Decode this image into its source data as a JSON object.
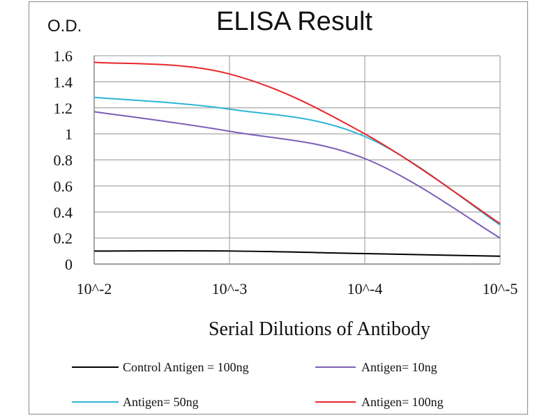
{
  "chart_data": {
    "type": "line",
    "title": "ELISA Result",
    "ylabel": "O.D.",
    "xlabel": "Serial Dilutions  of Antibody",
    "categories": [
      "10^-2",
      "10^-3",
      "10^-4",
      "10^-5"
    ],
    "ylim": [
      0,
      1.6
    ],
    "yticks": [
      "0",
      "0.2",
      "0.4",
      "0.6",
      "0.8",
      "1",
      "1.2",
      "1.4",
      "1.6"
    ],
    "grid": true,
    "legend_position": "bottom",
    "series": [
      {
        "name": "Control Antigen = 100ng",
        "color": "#000000",
        "values": [
          0.1,
          0.1,
          0.08,
          0.06
        ]
      },
      {
        "name": "Antigen= 10ng",
        "color": "#7b5fb8",
        "values": [
          1.17,
          1.02,
          0.81,
          0.2
        ]
      },
      {
        "name": "Antigen= 50ng",
        "color": "#2bb5d6",
        "values": [
          1.28,
          1.19,
          0.98,
          0.3
        ]
      },
      {
        "name": "Antigen= 100ng",
        "color": "#e8262a",
        "values": [
          1.55,
          1.46,
          1.0,
          0.31
        ]
      }
    ]
  }
}
